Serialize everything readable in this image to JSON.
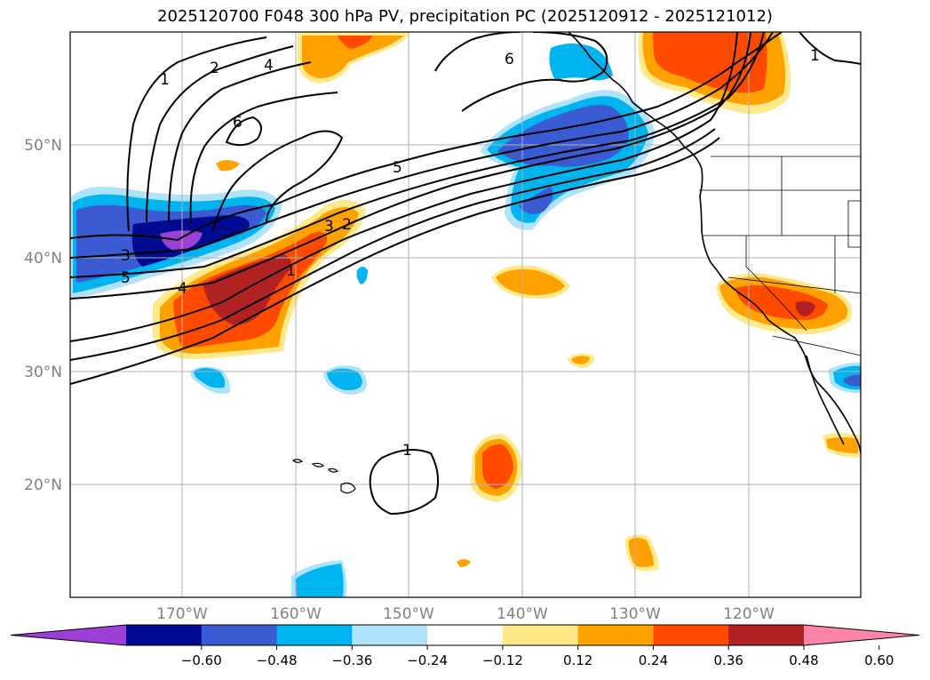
{
  "title": "2025120700 F048 300 hPa PV, precipitation PC (2025120912 - 2025121012)",
  "lat_labels": [
    "50°N",
    "40°N",
    "30°N",
    "20°N"
  ],
  "lon_labels": [
    "170°W",
    "160°W",
    "150°W",
    "140°W",
    "130°W",
    "120°W"
  ],
  "colorbar": {
    "ticks": [
      "−0.60",
      "−0.48",
      "−0.36",
      "−0.24",
      "−0.12",
      "0.12",
      "0.24",
      "0.36",
      "0.48",
      "0.60"
    ],
    "colors": [
      "#9b3fd6",
      "#000b8f",
      "#3a5bd1",
      "#00b4f0",
      "#aee3fb",
      "#ffffff",
      "#ffe98a",
      "#ffa200",
      "#ff4b00",
      "#b22222",
      "#ff85a8"
    ]
  },
  "contour_labels": [
    "1",
    "2",
    "4",
    "6",
    "6",
    "1",
    "3",
    "5",
    "4",
    "3",
    "2",
    "1",
    "5",
    "1"
  ]
}
